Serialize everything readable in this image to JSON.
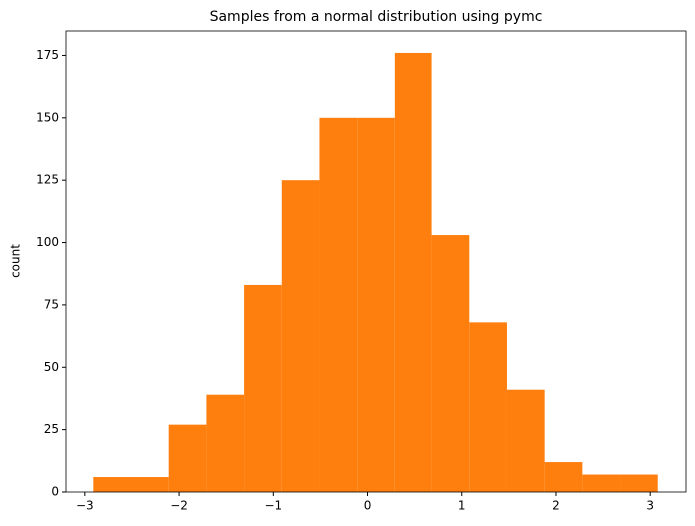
{
  "chart_data": {
    "type": "histogram",
    "title": "Samples from a normal distribution using pymc",
    "ylabel": "count",
    "bins": [
      -2.91,
      -2.51,
      -2.11,
      -1.71,
      -1.31,
      -0.91,
      -0.51,
      -0.11,
      0.29,
      0.68,
      1.08,
      1.48,
      1.88,
      2.28,
      2.68,
      3.08
    ],
    "values": [
      6,
      6,
      27,
      39,
      83,
      125,
      150,
      150,
      176,
      103,
      68,
      41,
      12,
      7,
      7
    ],
    "color": "#ff7f0e",
    "xlim": [
      -3.2,
      3.38
    ],
    "xticks": [
      {
        "value": -3,
        "label": "−3"
      },
      {
        "value": -2,
        "label": "−2"
      },
      {
        "value": -1,
        "label": "−1"
      },
      0,
      1,
      2,
      3
    ],
    "ylim": [
      0,
      184.8
    ],
    "yticks": [
      0,
      25,
      50,
      75,
      100,
      125,
      150,
      175
    ]
  }
}
